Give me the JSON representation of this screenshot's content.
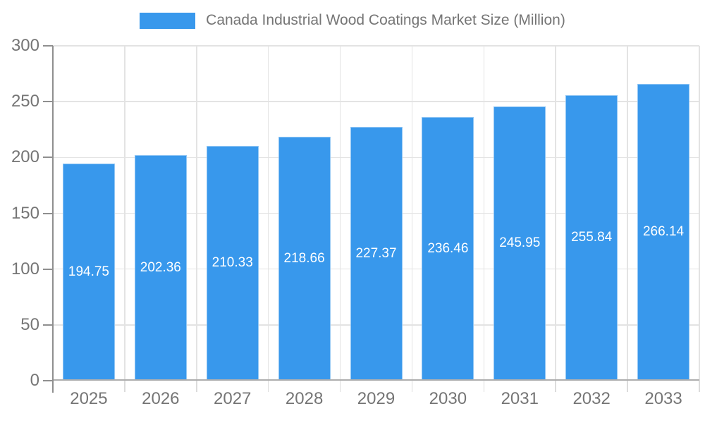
{
  "chart_data": {
    "type": "bar",
    "title": "Canada Industrial Wood Coatings Market Size (Million)",
    "categories": [
      "2025",
      "2026",
      "2027",
      "2028",
      "2029",
      "2030",
      "2031",
      "2032",
      "2033"
    ],
    "values": [
      194.75,
      202.36,
      210.33,
      218.66,
      227.37,
      236.46,
      245.95,
      255.84,
      266.14
    ],
    "xlabel": "",
    "ylabel": "",
    "ylim": [
      0,
      300
    ],
    "yticks": [
      0,
      50,
      100,
      150,
      200,
      250,
      300
    ],
    "grid": true,
    "legend_position": "top-center",
    "value_labels": "centered-inside-bars"
  },
  "colors": {
    "bar_fill": "#3898EC",
    "value_label_text": "#ffffff",
    "axis_text": "#757575",
    "title_text": "#757575",
    "gridline": "#e3e3e3",
    "y_axis_line": "#8f8f8f",
    "x_axis_line": "#aeaeae",
    "background": "#ffffff"
  }
}
